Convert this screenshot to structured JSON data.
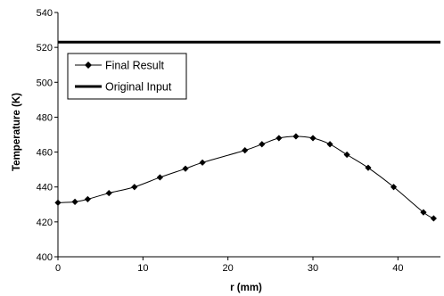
{
  "chart_data": {
    "type": "line",
    "xlabel": "r (mm)",
    "ylabel": "Temperature (K)",
    "xlim": [
      0,
      45
    ],
    "ylim": [
      400,
      540
    ],
    "x_ticks": [
      0,
      10,
      20,
      30,
      40
    ],
    "y_ticks": [
      400,
      420,
      440,
      460,
      480,
      500,
      520,
      540
    ],
    "grid": false,
    "legend_placement": "upper-left",
    "series": [
      {
        "name": "Final Result",
        "style": "smooth line with diamond markers",
        "color": "#000000",
        "x": [
          0,
          2,
          3.5,
          6,
          9,
          12,
          15,
          17,
          22,
          24,
          26,
          28,
          30,
          32,
          34,
          36.5,
          39.5,
          43,
          44.2
        ],
        "y": [
          431,
          431.5,
          433,
          436.5,
          440,
          445.5,
          450.5,
          454,
          461,
          464.5,
          468,
          469,
          468,
          464.5,
          458.5,
          451,
          440,
          425.5,
          422
        ]
      },
      {
        "name": "Original Input",
        "style": "thick line",
        "color": "#000000",
        "x": [
          0,
          45
        ],
        "y": [
          523,
          523
        ]
      }
    ]
  }
}
